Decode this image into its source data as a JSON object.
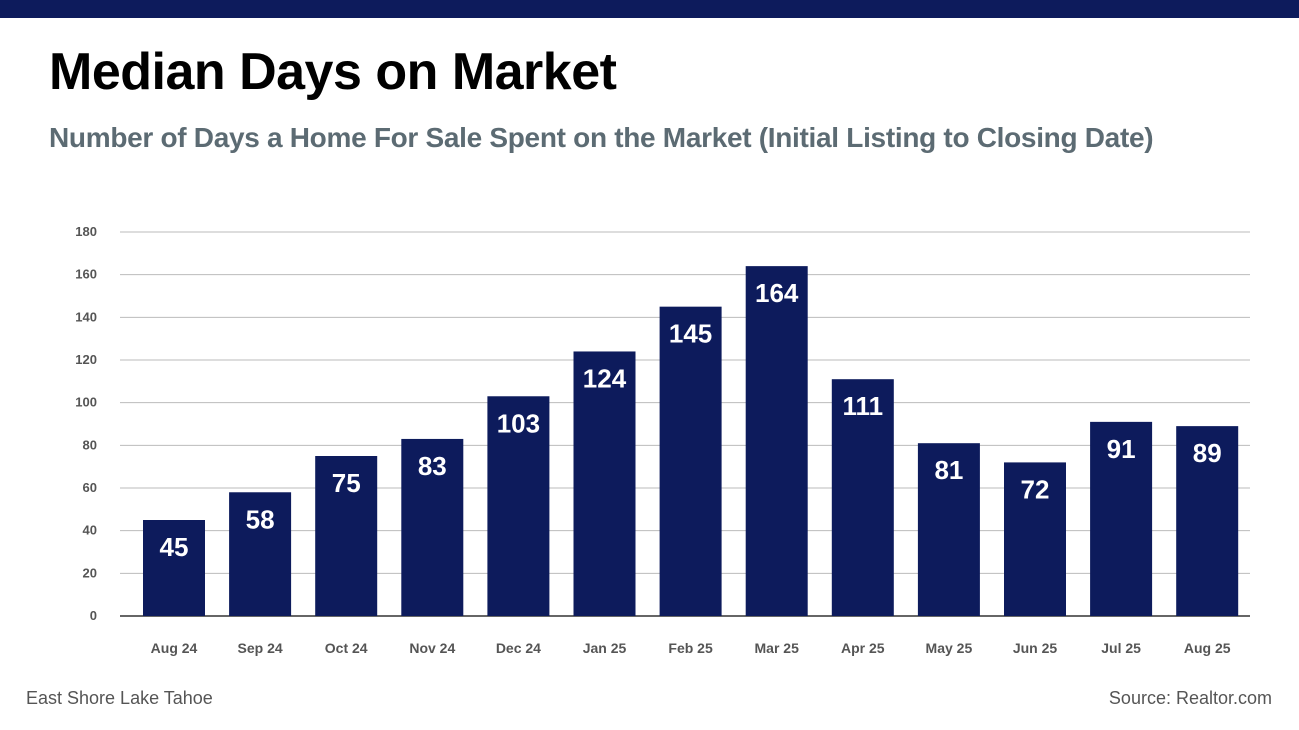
{
  "header": {
    "title": "Median Days on Market",
    "subtitle": "Number of Days a Home For Sale Spent on the Market (Initial Listing to Closing Date)"
  },
  "footer": {
    "location": "East Shore Lake Tahoe",
    "source": "Source: Realtor.com"
  },
  "colors": {
    "bar": "#0d1b5c",
    "top_bar": "#0d1b5c",
    "title": "#000000",
    "subtitle": "#5c6b73",
    "grid": "#bbbbbb",
    "tick_label": "#555555",
    "bar_label": "#ffffff"
  },
  "chart_data": {
    "type": "bar",
    "title": "",
    "xlabel": "",
    "ylabel": "",
    "categories": [
      "Aug 24",
      "Sep 24",
      "Oct 24",
      "Nov 24",
      "Dec 24",
      "Jan 25",
      "Feb 25",
      "Mar 25",
      "Apr 25",
      "May 25",
      "Jun 25",
      "Jul 25",
      "Aug 25"
    ],
    "values": [
      45,
      58,
      75,
      83,
      103,
      124,
      145,
      164,
      111,
      81,
      72,
      91,
      89
    ],
    "ylim": [
      0,
      180
    ],
    "yticks": [
      0,
      20,
      40,
      60,
      80,
      100,
      120,
      140,
      160,
      180
    ],
    "grid": true,
    "legend": "none",
    "data_labels": true
  }
}
